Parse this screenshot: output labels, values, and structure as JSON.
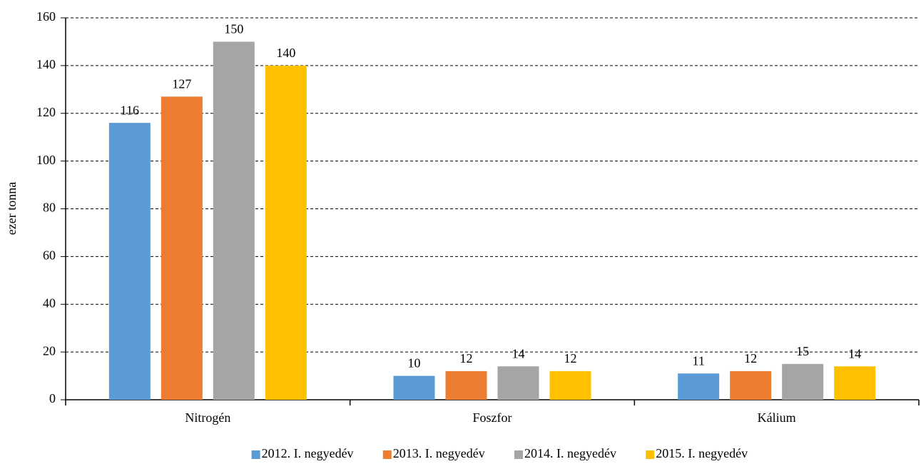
{
  "chart_data": {
    "type": "bar",
    "y_label": "ezer tonna",
    "categories": [
      "Nitrogén",
      "Foszfor",
      "Kálium"
    ],
    "series": [
      {
        "name": "2012. I. negyedév",
        "color": "#5b9bd5",
        "values": [
          116,
          10,
          11
        ]
      },
      {
        "name": "2013. I. negyedév",
        "color": "#ed7d31",
        "values": [
          127,
          12,
          12
        ]
      },
      {
        "name": "2014. I. negyedév",
        "color": "#a5a5a5",
        "values": [
          150,
          14,
          15
        ]
      },
      {
        "name": "2015. I. negyedév",
        "color": "#ffc000",
        "values": [
          140,
          12,
          14
        ]
      }
    ],
    "ylim": [
      0,
      160
    ],
    "yticks": [
      0,
      20,
      40,
      60,
      80,
      100,
      120,
      140,
      160
    ],
    "grid": true,
    "legend": "bottom"
  }
}
